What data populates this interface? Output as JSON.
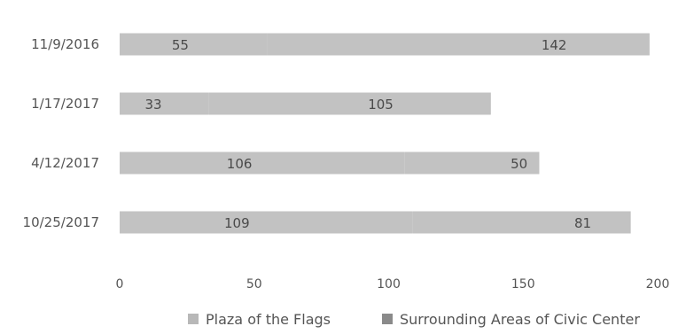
{
  "chart_data": {
    "type": "bar",
    "orientation": "horizontal",
    "stacked": true,
    "categories": [
      "11/9/2016",
      "1/17/2017",
      "4/12/2017",
      "10/25/2017"
    ],
    "series": [
      {
        "name": "Plaza of the Flags",
        "values": [
          55,
          33,
          106,
          109
        ],
        "color": "#c2c2c2"
      },
      {
        "name": "Surrounding Areas of Civic Center",
        "values": [
          142,
          105,
          50,
          81
        ],
        "color": "#c2c2c2"
      }
    ],
    "legend_swatch_colors": [
      "#b8b8b8",
      "#8a8a8a"
    ],
    "xlim": [
      0,
      200
    ],
    "xticks": [
      0,
      50,
      100,
      150,
      200
    ],
    "grid": false,
    "legend_position": "bottom"
  }
}
